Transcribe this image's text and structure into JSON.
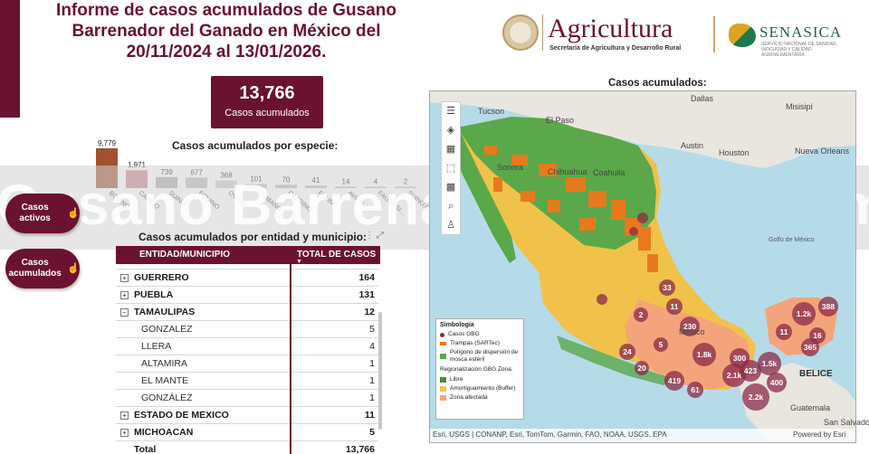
{
  "header": {
    "title": "Informe de casos acumulados de Gusano Barrenador del Ganado en México del 20/11/2024 al 13/01/2026."
  },
  "logos": {
    "agricultura_name": "Agricultura",
    "agricultura_sub": "Secretaría de Agricultura y Desarrollo Rural",
    "senasica_name": "SENASICA",
    "senasica_sub": "SERVICIO NACIONAL DE SANIDAD, INOCUIDAD Y CALIDAD AGROALIMENTARIA"
  },
  "total_card": {
    "value": "13,766",
    "label": "Casos acumulados"
  },
  "species_section": {
    "title": "Casos acumulados por especie:"
  },
  "chart_data": {
    "type": "bar",
    "title": "Casos acumulados por especie:",
    "categories": [
      "BOVINO",
      "CANINO",
      "SUINO",
      "EQUINO",
      "OVINO",
      "HUMANO",
      "CAPRINO",
      "FELINO",
      "AVIAR",
      "FAUNA SI...",
      "SUINO,CA..."
    ],
    "values": [
      9779,
      1971,
      739,
      677,
      368,
      101,
      70,
      41,
      14,
      4,
      2
    ],
    "value_labels": [
      "9,779",
      "1,971",
      "739",
      "677",
      "368",
      "101",
      "70",
      "41",
      "14",
      "4",
      "2"
    ],
    "colors": [
      "#a0522d",
      "#c9848f",
      "#aaaaaa",
      "#bbbbbb",
      "#cccccc",
      "#bbbbbb",
      "#bbbbbb",
      "#bbbbbb",
      "#bbbbbb",
      "#bbbbbb",
      "#bbbbbb"
    ],
    "grid": false,
    "legend": "none"
  },
  "banner": {
    "text": "Gusano Barrenador ... HOY Tama"
  },
  "buttons": {
    "activos": "Casos activos",
    "acumulados": "Casos acumulados"
  },
  "table": {
    "title": "Casos acumulados por entidad y municipio:",
    "col1": "ENTIDAD/MUNICIPIO",
    "col2": "TOTAL DE CASOS",
    "rows": [
      {
        "name": "GUERRERO",
        "value": "164",
        "kind": "group",
        "toggle": "+"
      },
      {
        "name": "PUEBLA",
        "value": "131",
        "kind": "group",
        "toggle": "+"
      },
      {
        "name": "TAMAULIPAS",
        "value": "12",
        "kind": "group",
        "toggle": "−"
      },
      {
        "name": "GONZALEZ",
        "value": "5",
        "kind": "child"
      },
      {
        "name": "LLERA",
        "value": "4",
        "kind": "child"
      },
      {
        "name": "ALTAMIRA",
        "value": "1",
        "kind": "child"
      },
      {
        "name": "EL MANTE",
        "value": "1",
        "kind": "child"
      },
      {
        "name": "GONZÁLEZ",
        "value": "1",
        "kind": "child"
      },
      {
        "name": "ESTADO DE MEXICO",
        "value": "11",
        "kind": "group",
        "toggle": "+"
      },
      {
        "name": "MICHOACAN",
        "value": "5",
        "kind": "group",
        "toggle": "+"
      }
    ],
    "total_label": "Total",
    "total_value": "13,766"
  },
  "map": {
    "title": "Casos acumulados:",
    "place_labels": [
      "Dallas",
      "Tucson",
      "El Paso",
      "Misisipí",
      "Austin",
      "Houston",
      "Nueva Orleans",
      "Golfo de México",
      "Sonora",
      "Chihuahua",
      "Coahuila",
      "México",
      "BELICE",
      "Guatemala",
      "San Salvador"
    ],
    "cluster_labels": [
      "33",
      "11",
      "2",
      "230",
      "24",
      "5",
      "20",
      "419",
      "61",
      "1.8k",
      "300",
      "2.1k",
      "423",
      "1.5k",
      "400",
      "2.2k",
      "11",
      "16",
      "365",
      "1.2k",
      "388"
    ],
    "toolbar_icons": [
      "menu-icon",
      "layers-icon",
      "table-icon",
      "select-icon",
      "search-icon",
      "person-icon"
    ],
    "legend": {
      "title": "Simbología",
      "items": [
        "Casos GBG",
        "Trampas (SARTec)",
        "Polígono de dispersión de mosca estéril"
      ],
      "zone_title": "Regionalización GBG Zona:",
      "zones": [
        "Libre",
        "Amortiguamiento (Buffer)",
        "Zona afectada"
      ]
    },
    "attribution": "Esri, USGS | CONANP, Esri, TomTom, Garmin, FAO, NOAA, USGS, EPA",
    "powered_by": "Powered by Esri",
    "colors": {
      "libre": "#5aa84a",
      "buffer": "#f0c24a",
      "afectada": "#f4a47a",
      "case": "#8b2a4a",
      "trap": "#e8791c",
      "water": "#b6dbe8",
      "land": "#e9e6df"
    }
  }
}
